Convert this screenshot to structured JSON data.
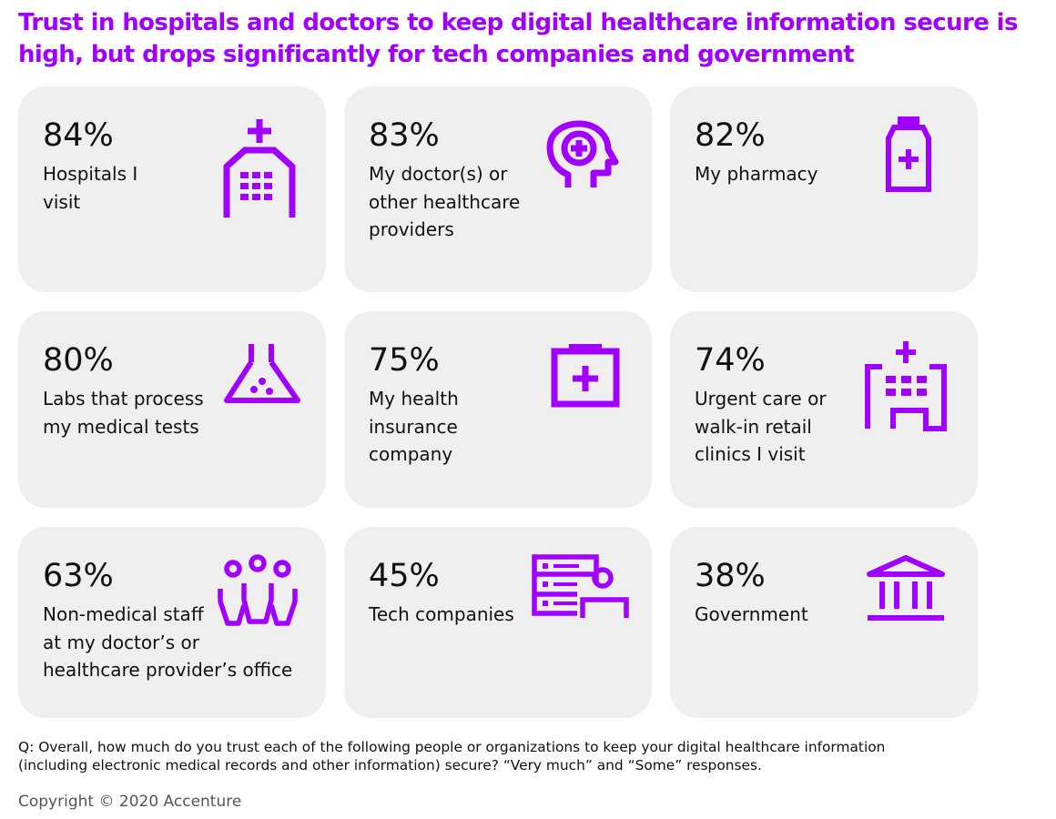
{
  "title": "Trust in hospitals and doctors to keep digital healthcare information secure is high, but drops significantly for tech companies and government",
  "chart_data": {
    "type": "table",
    "categories": [
      "Hospitals I visit",
      "My doctor(s) or other healthcare providers",
      "My pharmacy",
      "Labs that process my medical tests",
      "My health insurance company",
      "Urgent care or walk-in retail clinics I visit",
      "Non-medical staff at my doctor’s or healthcare provider’s office",
      "Tech companies",
      "Government"
    ],
    "values": [
      84,
      83,
      82,
      80,
      75,
      74,
      63,
      45,
      38
    ],
    "unit": "%"
  },
  "cards": [
    {
      "value": "84%",
      "label": "Hospitals I\nvisit",
      "icon": "hospital-building-icon"
    },
    {
      "value": "83%",
      "label": "My doctor(s) or\nother healthcare\nproviders",
      "icon": "head-medical-cross-icon"
    },
    {
      "value": "82%",
      "label": "My pharmacy",
      "icon": "medicine-bottle-icon"
    },
    {
      "value": "80%",
      "label": "Labs that process\nmy medical tests",
      "icon": "lab-flask-icon"
    },
    {
      "value": "75%",
      "label": "My health\ninsurance\ncompany",
      "icon": "insurance-clipboard-icon"
    },
    {
      "value": "74%",
      "label": "Urgent care or\nwalk-in retail\nclinics I visit",
      "icon": "clinic-building-icon"
    },
    {
      "value": "63%",
      "label": "Non-medical staff\nat my doctor’s or\nhealthcare provider’s office",
      "icon": "staff-group-icon"
    },
    {
      "value": "45%",
      "label": "Tech companies",
      "icon": "tech-server-user-icon"
    },
    {
      "value": "38%",
      "label": "Government",
      "icon": "government-building-icon"
    }
  ],
  "question": "Q: Overall, how much do you trust each of the following people or organizations to keep your digital healthcare information\n(including electronic medical records and other information) secure? “Very much” and “Some” responses.",
  "copyright": "Copyright © 2020 Accenture",
  "colors": {
    "accent": "#a100ff",
    "card_background": "#efefef",
    "text": "#111111"
  }
}
